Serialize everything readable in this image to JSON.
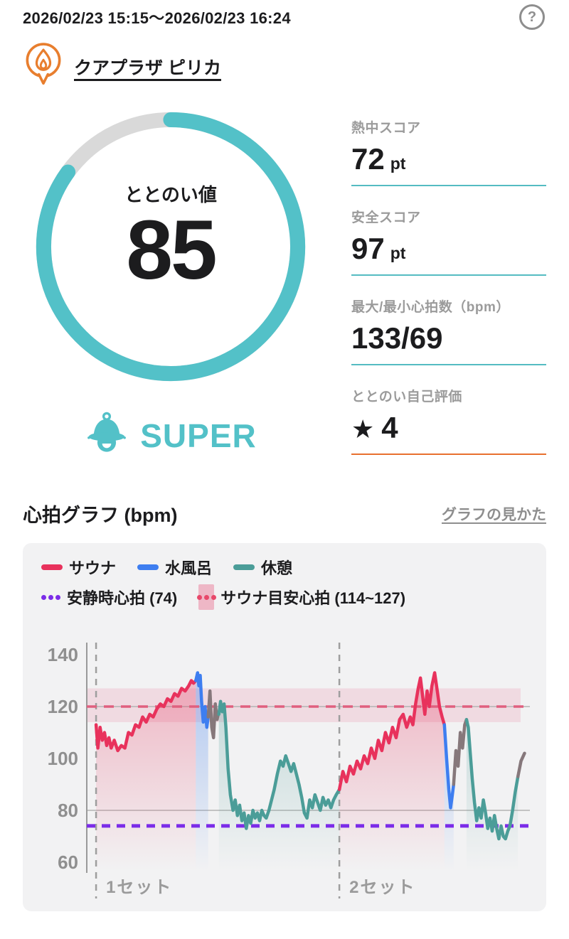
{
  "header": {
    "date_range": "2026/02/23 15:15～2026/02/23 16:24",
    "help_icon": "?"
  },
  "facility": {
    "name": "クアプラザ ピリカ"
  },
  "gauge": {
    "label": "ととのい値",
    "value": "85",
    "percent": 85,
    "rating": "SUPER",
    "ring_color": "#53c1c8",
    "track_color": "#d9d9d9"
  },
  "stats": [
    {
      "label": "熱中スコア",
      "value": "72",
      "unit": "pt",
      "underline_color": "#55bcc2"
    },
    {
      "label": "安全スコア",
      "value": "97",
      "unit": "pt",
      "underline_color": "#55bcc2"
    },
    {
      "label": "最大/最小心拍数（bpm）",
      "value": "133/69",
      "unit": "",
      "underline_color": "#55bcc2"
    },
    {
      "label": "ととのい自己評価",
      "star": "★",
      "value": "4",
      "unit": "",
      "underline_color": "#e8702f"
    }
  ],
  "chart_section": {
    "title": "心拍グラフ (bpm)",
    "link_label": "グラフの見かた"
  },
  "chart_data": {
    "type": "line",
    "title": "心拍グラフ (bpm)",
    "unit": "bpm",
    "ylim": [
      55,
      148
    ],
    "yticks": [
      140,
      120,
      100,
      80,
      60
    ],
    "solid_gridlines": [
      120,
      80
    ],
    "xlim": [
      0,
      100
    ],
    "legend": [
      {
        "key": "sauna",
        "label": "サウナ",
        "color": "#e8325c"
      },
      {
        "key": "water",
        "label": "水風呂",
        "color": "#3e7ef0"
      },
      {
        "key": "rest",
        "label": "休憩",
        "color": "#4b9d98"
      }
    ],
    "transition_color": "#86787b",
    "resting_heart_rate": {
      "label": "安静時心拍 (74)",
      "value": 74,
      "color": "#7b2ce8"
    },
    "sauna_target": {
      "label": "サウナ目安心拍 (114~127)",
      "min": 114,
      "max": 127,
      "center_line": 120,
      "band_color": "#eeb7c6",
      "band_opacity": 0.4,
      "line_color": "#e0607f",
      "dot_color": "#e8486a"
    },
    "x_markers": [
      {
        "label": "1セット",
        "u": 2.1
      },
      {
        "label": "2セット",
        "u": 57
      }
    ],
    "segments": [
      {
        "phase": "sauna",
        "points": [
          [
            2.1,
            113
          ],
          [
            2.5,
            104
          ],
          [
            3,
            112
          ],
          [
            3.5,
            107
          ],
          [
            4,
            110
          ],
          [
            4.5,
            105
          ],
          [
            5,
            108
          ],
          [
            5.5,
            104
          ],
          [
            6.2,
            107
          ],
          [
            7,
            103
          ],
          [
            7.8,
            105
          ],
          [
            8.6,
            104
          ],
          [
            9.4,
            110
          ],
          [
            10.2,
            109
          ],
          [
            11,
            113
          ],
          [
            11.8,
            112
          ],
          [
            12.6,
            116
          ],
          [
            13.4,
            114
          ],
          [
            14.2,
            117
          ],
          [
            15,
            116
          ],
          [
            15.8,
            119
          ],
          [
            16.6,
            121
          ],
          [
            17.4,
            120
          ],
          [
            18.2,
            123
          ],
          [
            19,
            122
          ],
          [
            19.8,
            125
          ],
          [
            20.6,
            124
          ],
          [
            21.4,
            127
          ],
          [
            22.2,
            126
          ],
          [
            23,
            128
          ],
          [
            23.6,
            130
          ],
          [
            24.1,
            129
          ],
          [
            24.6,
            130
          ]
        ]
      },
      {
        "phase": "water",
        "points": [
          [
            24.6,
            130
          ],
          [
            25,
            133
          ],
          [
            25.3,
            128
          ],
          [
            25.6,
            132
          ],
          [
            25.9,
            122
          ],
          [
            26.3,
            114
          ],
          [
            26.7,
            120
          ],
          [
            27.1,
            112
          ],
          [
            27.4,
            116
          ]
        ]
      },
      {
        "phase": "transition",
        "points": [
          [
            27.4,
            116
          ],
          [
            27.8,
            126
          ],
          [
            28.2,
            112
          ],
          [
            28.6,
            108
          ],
          [
            29,
            121
          ],
          [
            29.4,
            115
          ],
          [
            29.8,
            118
          ]
        ]
      },
      {
        "phase": "rest",
        "points": [
          [
            29.8,
            117
          ],
          [
            30.2,
            122
          ],
          [
            30.6,
            118
          ],
          [
            31,
            121
          ],
          [
            31.4,
            112
          ],
          [
            31.9,
            96
          ],
          [
            32.4,
            86
          ],
          [
            33,
            80
          ],
          [
            33.5,
            84
          ],
          [
            34,
            78
          ],
          [
            34.5,
            82
          ],
          [
            35,
            76
          ],
          [
            35.5,
            79
          ],
          [
            36,
            73
          ],
          [
            36.5,
            78
          ],
          [
            37,
            75
          ],
          [
            37.5,
            80
          ],
          [
            38,
            77
          ],
          [
            38.5,
            79
          ],
          [
            39,
            76
          ],
          [
            39.5,
            80
          ],
          [
            40,
            78
          ],
          [
            40.5,
            77
          ],
          [
            41.1,
            80
          ],
          [
            41.7,
            84
          ],
          [
            42.3,
            88
          ],
          [
            43,
            94
          ],
          [
            43.7,
            99
          ],
          [
            44.3,
            97
          ],
          [
            44.9,
            101
          ],
          [
            45.5,
            98
          ],
          [
            46.1,
            95
          ],
          [
            46.7,
            98
          ],
          [
            47.3,
            94
          ],
          [
            47.9,
            90
          ],
          [
            48.5,
            85
          ],
          [
            49.1,
            79
          ],
          [
            49.7,
            77
          ],
          [
            50.3,
            84
          ],
          [
            50.9,
            81
          ],
          [
            51.5,
            86
          ],
          [
            52.1,
            83
          ],
          [
            52.7,
            80
          ],
          [
            53.3,
            85
          ],
          [
            53.9,
            82
          ],
          [
            54.5,
            84
          ],
          [
            55.1,
            81
          ],
          [
            55.7,
            84
          ],
          [
            56.3,
            86
          ],
          [
            57,
            88
          ]
        ]
      },
      {
        "phase": "sauna",
        "points": [
          [
            57,
            88
          ],
          [
            57.8,
            95
          ],
          [
            58.6,
            91
          ],
          [
            59.4,
            97
          ],
          [
            60.2,
            94
          ],
          [
            61,
            99
          ],
          [
            61.8,
            96
          ],
          [
            62.6,
            101
          ],
          [
            63.4,
            98
          ],
          [
            64.2,
            104
          ],
          [
            65,
            100
          ],
          [
            65.8,
            107
          ],
          [
            66.6,
            103
          ],
          [
            67.4,
            110
          ],
          [
            68.2,
            106
          ],
          [
            69,
            112
          ],
          [
            69.8,
            108
          ],
          [
            70.6,
            115
          ],
          [
            71.4,
            117
          ],
          [
            72.2,
            112
          ],
          [
            73,
            116
          ],
          [
            73.6,
            113
          ],
          [
            74.2,
            121
          ],
          [
            74.8,
            127
          ],
          [
            75.3,
            131
          ],
          [
            75.8,
            124
          ],
          [
            76.3,
            117
          ],
          [
            76.8,
            126
          ],
          [
            77.3,
            120
          ],
          [
            77.9,
            128
          ],
          [
            78.5,
            133
          ],
          [
            79.1,
            126
          ],
          [
            79.6,
            120
          ],
          [
            80.2,
            116
          ],
          [
            80.7,
            113
          ]
        ]
      },
      {
        "phase": "water",
        "points": [
          [
            80.7,
            113
          ],
          [
            81.2,
            100
          ],
          [
            81.7,
            88
          ],
          [
            82.1,
            81
          ],
          [
            82.5,
            86
          ],
          [
            82.8,
            90
          ]
        ]
      },
      {
        "phase": "transition",
        "points": [
          [
            82.8,
            90
          ],
          [
            83.3,
            103
          ],
          [
            83.8,
            97
          ],
          [
            84.3,
            110
          ],
          [
            84.8,
            104
          ],
          [
            85.3,
            113
          ],
          [
            85.7,
            115
          ]
        ]
      },
      {
        "phase": "rest",
        "points": [
          [
            85.7,
            115
          ],
          [
            86.1,
            112
          ],
          [
            86.5,
            103
          ],
          [
            87,
            92
          ],
          [
            87.5,
            83
          ],
          [
            88,
            76
          ],
          [
            88.5,
            81
          ],
          [
            89,
            77
          ],
          [
            89.5,
            84
          ],
          [
            90,
            79
          ],
          [
            90.5,
            73
          ],
          [
            91,
            77
          ],
          [
            91.5,
            72
          ],
          [
            92,
            78
          ],
          [
            92.5,
            73
          ],
          [
            93,
            69
          ],
          [
            93.5,
            74
          ],
          [
            94,
            70
          ],
          [
            94.5,
            69
          ],
          [
            95,
            72
          ],
          [
            95.5,
            74
          ],
          [
            96.1,
            80
          ],
          [
            96.7,
            87
          ],
          [
            97.3,
            93
          ]
        ]
      },
      {
        "phase": "transition",
        "points": [
          [
            97.3,
            93
          ],
          [
            98,
            99
          ],
          [
            98.8,
            102
          ]
        ]
      }
    ]
  }
}
